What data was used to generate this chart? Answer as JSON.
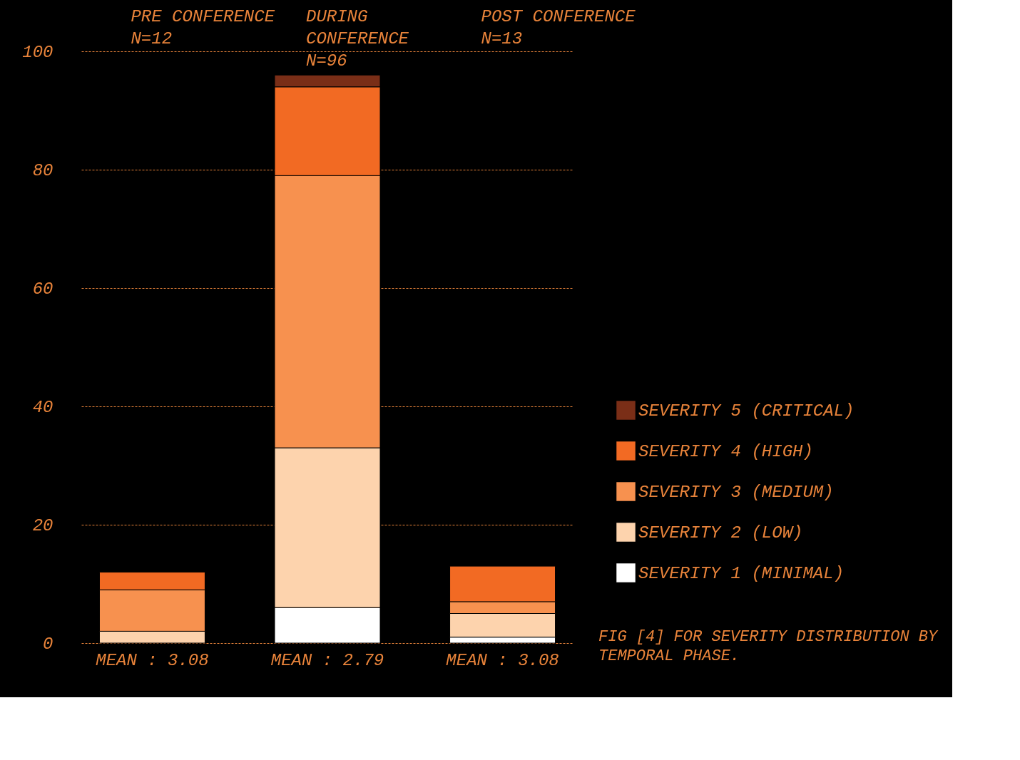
{
  "chart_data": {
    "type": "bar",
    "stacked": true,
    "categories": [
      "PRE CONFERENCE\nN=12",
      "DURING\nCONFERENCE\nN=96",
      "POST CONFERENCE\nN=13"
    ],
    "series": [
      {
        "name": "SEVERITY 1 (MINIMAL)",
        "color": "#ffffff",
        "values": [
          0,
          6,
          1
        ]
      },
      {
        "name": "SEVERITY 2 (LOW)",
        "color": "#fdd3ad",
        "values": [
          2,
          27,
          4
        ]
      },
      {
        "name": "SEVERITY 3 (MEDIUM)",
        "color": "#f7914f",
        "values": [
          7,
          46,
          2
        ]
      },
      {
        "name": "SEVERITY 4 (HIGH)",
        "color": "#f26a23",
        "values": [
          3,
          15,
          6
        ]
      },
      {
        "name": "SEVERITY 5 (CRITICAL)",
        "color": "#7a2e17",
        "values": [
          0,
          2,
          0
        ]
      }
    ],
    "ylim": [
      0,
      100
    ],
    "yticks": [
      0,
      20,
      40,
      60,
      80,
      100
    ],
    "grid": "y",
    "legend": "bottom right",
    "annotations": [
      {
        "text": "MEAN : 3.08",
        "x": "PRE CONFERENCE\nN=12",
        "y": 0
      },
      {
        "text": "MEAN : 2.79",
        "x": "DURING\nCONFERENCE\nN=96",
        "y": 0
      },
      {
        "text": "MEAN : 3.08",
        "x": "POST CONFERENCE\nN=13",
        "y": 0
      },
      "FIG [4] FOR SEVERITY DISTRIBUTION BY TEMPORAL PHASE."
    ]
  }
}
